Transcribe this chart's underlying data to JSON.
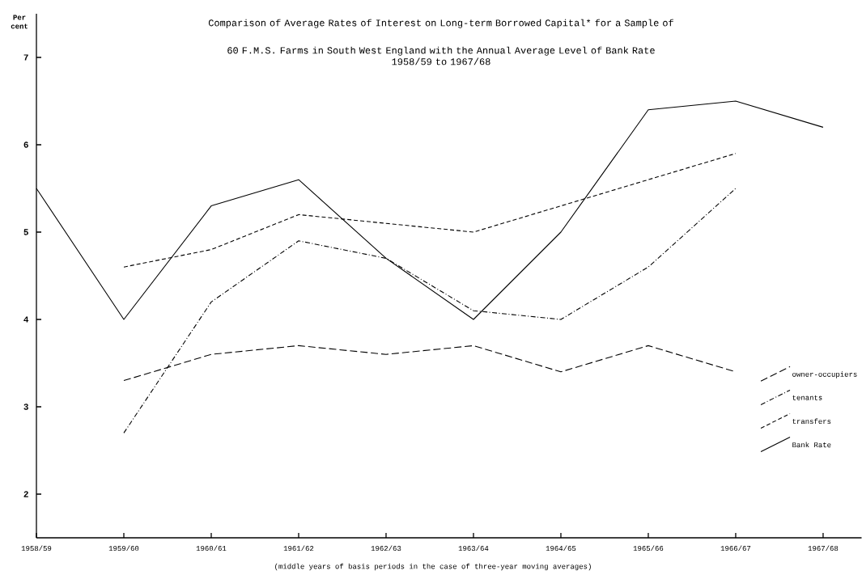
{
  "chart_data": {
    "type": "line",
    "title": "Comparison of Average Rates of Interest on Long-term Borrowed Capital* for a Sample of\n60 F.M.S. Farms in South West England with the Annual Average Level of Bank Rate\n1958/59 to 1967/68",
    "xlabel": "(middle years of basis periods in the case of three-year moving averages)",
    "ylabel": "Per cent",
    "categories": [
      "1958/59",
      "1959/60",
      "1960/61",
      "1961/62",
      "1962/63",
      "1963/64",
      "1964/65",
      "1965/66",
      "1966/67",
      "1967/68"
    ],
    "series": [
      {
        "name": "owner-occupiers",
        "color": "#000000",
        "line_style": "long dashed",
        "values": [
          null,
          3.3,
          3.6,
          3.7,
          3.6,
          3.7,
          3.4,
          3.7,
          3.4,
          null
        ]
      },
      {
        "name": "tenants",
        "color": "#000000",
        "line_style": "dashdot",
        "values": [
          null,
          2.7,
          4.2,
          4.9,
          4.7,
          4.1,
          4.0,
          4.6,
          5.5,
          null
        ]
      },
      {
        "name": "transfers",
        "color": "#000000",
        "line_style": "dashed",
        "values": [
          null,
          4.6,
          4.8,
          5.2,
          5.1,
          5.0,
          5.3,
          5.6,
          5.9,
          null
        ]
      },
      {
        "name": "Bank Rate",
        "color": "#000000",
        "line_style": "solid",
        "values": [
          5.5,
          4.0,
          5.3,
          5.6,
          4.7,
          4.0,
          5.0,
          6.4,
          6.5,
          6.2
        ]
      }
    ],
    "ylim": [
      1.5,
      7.5
    ],
    "yticks": [
      2,
      3,
      4,
      5,
      6,
      7
    ],
    "grid": false,
    "legend": "bottom right",
    "marker": "none"
  }
}
